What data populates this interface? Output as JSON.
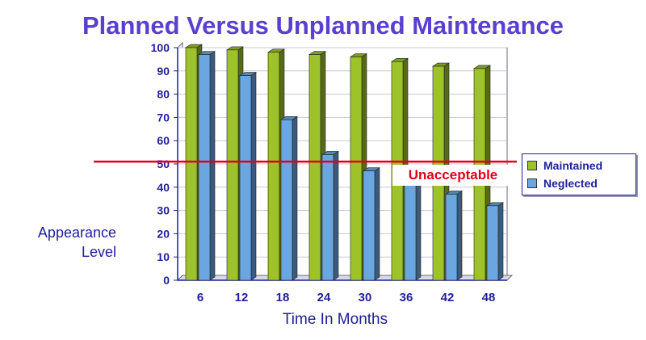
{
  "chart_data": {
    "type": "bar",
    "title": "Planned Versus Unplanned Maintenance",
    "xlabel": "Time In Months",
    "ylabel_lines": [
      "Appearance",
      "Level"
    ],
    "categories": [
      "6",
      "12",
      "18",
      "24",
      "30",
      "36",
      "42",
      "48"
    ],
    "series": [
      {
        "name": "Maintained",
        "color": "#9ec22a",
        "values": [
          100,
          99,
          98,
          97,
          96,
          94,
          92,
          91
        ]
      },
      {
        "name": "Neglected",
        "color": "#6aa6e0",
        "values": [
          97,
          88,
          69,
          54,
          47,
          41,
          37,
          32
        ]
      }
    ],
    "ylim": [
      0,
      100
    ],
    "yticks": [
      0,
      10,
      20,
      30,
      40,
      50,
      60,
      70,
      80,
      90,
      100
    ],
    "grid": true,
    "legend_position": "right",
    "annotations": [
      {
        "label": "Unacceptable",
        "y": 51,
        "color": "#e0001a"
      }
    ]
  }
}
